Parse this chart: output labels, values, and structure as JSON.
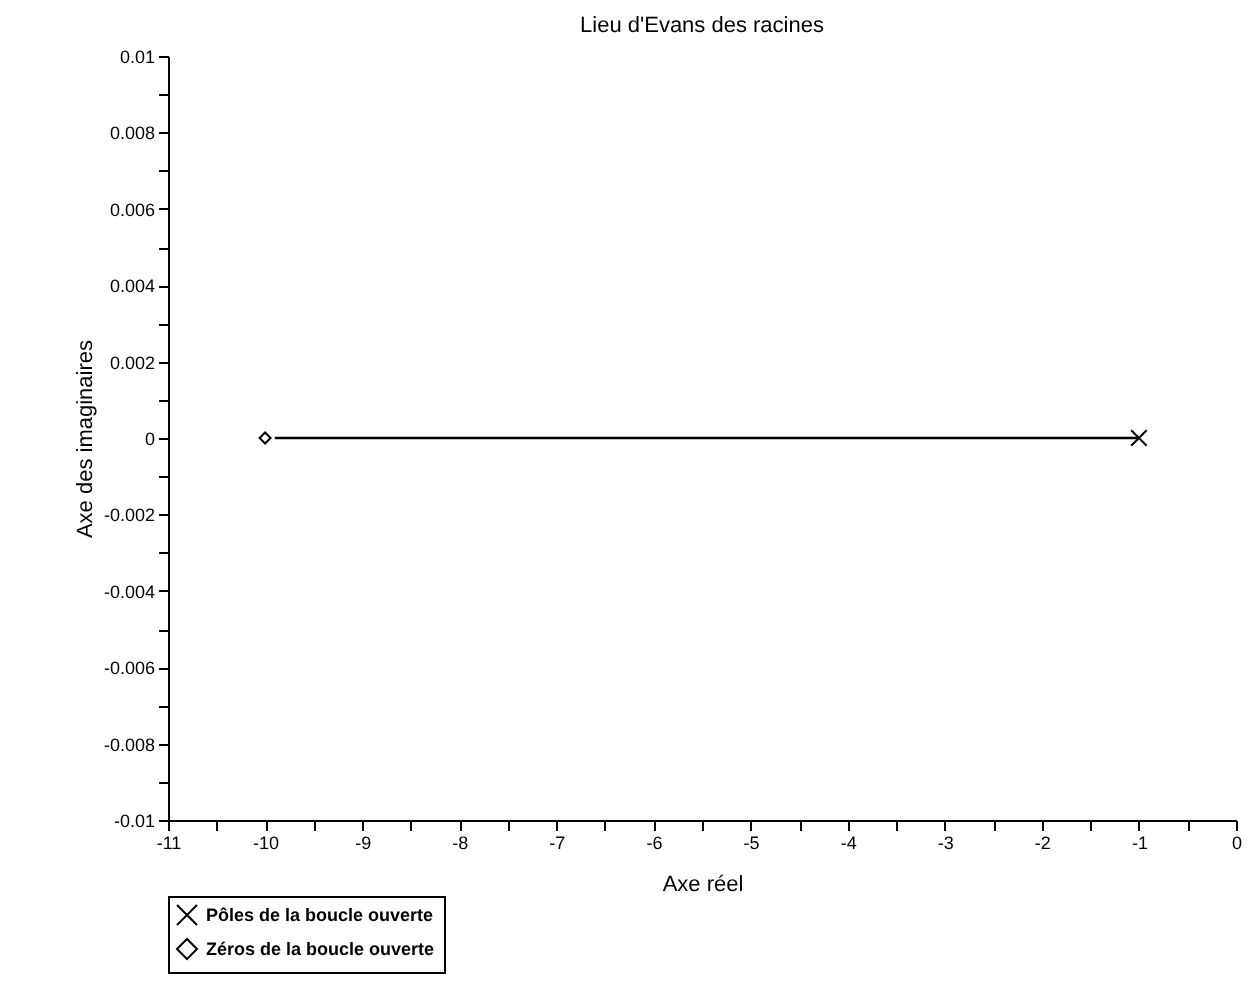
{
  "chart_data": {
    "type": "line",
    "title": "Lieu d'Evans des racines",
    "xlabel": "Axe réel",
    "ylabel": "Axe des imaginaires",
    "series": [
      {
        "type": "line",
        "color": "#000000",
        "marker": "none",
        "x": [
          -9.9,
          -1
        ],
        "values": [
          0,
          0
        ]
      },
      {
        "type": "scatter",
        "name": "Pôles de la boucle ouverte",
        "color": "#000000",
        "marker": "cross",
        "x": [
          -1
        ],
        "values": [
          0
        ]
      },
      {
        "type": "scatter",
        "name": "Zéros de la boucle ouverte",
        "color": "#000000",
        "marker": "diamond",
        "x": [
          -10
        ],
        "values": [
          0
        ]
      }
    ],
    "xlim": [
      -11,
      0
    ],
    "xticks": [
      -11,
      {
        "value": -10.5,
        "label": null
      },
      -10,
      {
        "value": -9.5,
        "label": null
      },
      -9,
      {
        "value": -8.5,
        "label": null
      },
      -8,
      {
        "value": -7.5,
        "label": null
      },
      -7,
      {
        "value": -6.5,
        "label": null
      },
      -6,
      {
        "value": -5.5,
        "label": null
      },
      -5,
      {
        "value": -4.5,
        "label": null
      },
      -4,
      {
        "value": -3.5,
        "label": null
      },
      -3,
      {
        "value": -2.5,
        "label": null
      },
      -2,
      {
        "value": -1.5,
        "label": null
      },
      -1,
      {
        "value": -0.5,
        "label": null
      },
      0
    ],
    "ylim": [
      -0.01,
      0.01
    ],
    "yticks": [
      -0.01,
      {
        "value": -0.009,
        "label": null
      },
      -0.008,
      {
        "value": -0.007,
        "label": null
      },
      -0.006,
      {
        "value": -0.005,
        "label": null
      },
      -0.004,
      {
        "value": -0.003,
        "label": null
      },
      -0.002,
      {
        "value": -0.001,
        "label": null
      },
      0,
      {
        "value": 0.001,
        "label": null
      },
      0.002,
      {
        "value": 0.003,
        "label": null
      },
      0.004,
      {
        "value": 0.005,
        "label": null
      },
      0.006,
      {
        "value": 0.007,
        "label": null
      },
      0.008,
      {
        "value": 0.009,
        "label": null
      },
      0.01
    ],
    "grid": false,
    "legend": "bottom left"
  }
}
